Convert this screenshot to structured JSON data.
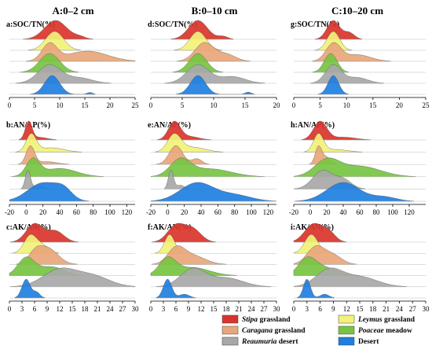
{
  "column_titles": [
    "A:0–2 cm",
    "B:0–10 cm",
    "C:10–20 cm"
  ],
  "chart_data": [
    {
      "id": "a",
      "type": "ridgeline",
      "title": "a:SOC/TN(%)",
      "ticks": [
        0,
        5,
        10,
        15,
        20,
        25
      ],
      "xlim": [
        0,
        25
      ],
      "series": [
        {
          "group": "Stipa grassland",
          "peaks": [
            [
              9.2,
              2.2,
              1.0
            ],
            [
              14.0,
              1.2,
              0.12
            ]
          ]
        },
        {
          "group": "Leymus grassland",
          "peaks": [
            [
              9.0,
              1.8,
              1.0
            ]
          ]
        },
        {
          "group": "Caragana grassland",
          "peaks": [
            [
              8.0,
              1.5,
              0.75
            ],
            [
              15.5,
              4.0,
              0.45
            ]
          ]
        },
        {
          "group": "Poaceae meadow",
          "peaks": [
            [
              8.0,
              2.0,
              1.0
            ]
          ]
        },
        {
          "group": "Reaumuria desert",
          "peaks": [
            [
              8.0,
              2.3,
              0.7
            ],
            [
              14.0,
              2.5,
              0.2
            ]
          ]
        },
        {
          "group": "Desert",
          "peaks": [
            [
              8.5,
              1.5,
              1.0
            ],
            [
              16.0,
              0.6,
              0.1
            ]
          ]
        }
      ]
    },
    {
      "id": "d",
      "type": "ridgeline",
      "title": "d:SOC/TN(%)",
      "ticks": [
        0,
        5,
        10,
        15,
        20
      ],
      "xlim": [
        0,
        20
      ],
      "series": [
        {
          "group": "Stipa grassland",
          "peaks": [
            [
              7.5,
              1.5,
              1.0
            ],
            [
              11.5,
              0.8,
              0.15
            ]
          ]
        },
        {
          "group": "Leymus grassland",
          "peaks": [
            [
              7.5,
              1.3,
              1.0
            ]
          ]
        },
        {
          "group": "Caragana grassland",
          "peaks": [
            [
              8.5,
              1.5,
              0.8
            ],
            [
              12.0,
              1.5,
              0.3
            ]
          ]
        },
        {
          "group": "Poaceae meadow",
          "peaks": [
            [
              7.5,
              1.4,
              1.0
            ]
          ]
        },
        {
          "group": "Reaumuria desert",
          "peaks": [
            [
              7.5,
              1.8,
              0.7
            ],
            [
              13.0,
              2.0,
              0.25
            ]
          ]
        },
        {
          "group": "Desert",
          "peaks": [
            [
              7.5,
              1.2,
              1.0
            ],
            [
              15.5,
              0.5,
              0.12
            ]
          ]
        }
      ]
    },
    {
      "id": "g",
      "type": "ridgeline",
      "title": "g:SOC/TN(%)",
      "ticks": [
        0,
        5,
        10,
        15,
        20,
        25
      ],
      "xlim": [
        0,
        25
      ],
      "series": [
        {
          "group": "Stipa grassland",
          "peaks": [
            [
              7.5,
              1.2,
              1.0
            ],
            [
              10.5,
              1.0,
              0.35
            ]
          ]
        },
        {
          "group": "Leymus grassland",
          "peaks": [
            [
              7.5,
              1.2,
              1.0
            ]
          ]
        },
        {
          "group": "Caragana grassland",
          "peaks": [
            [
              7.5,
              1.4,
              0.8
            ],
            [
              12.0,
              2.5,
              0.3
            ]
          ]
        },
        {
          "group": "Poaceae meadow",
          "peaks": [
            [
              7.0,
              1.2,
              1.0
            ]
          ]
        },
        {
          "group": "Reaumuria desert",
          "peaks": [
            [
              7.5,
              1.5,
              0.8
            ],
            [
              12.0,
              2.0,
              0.25
            ]
          ]
        },
        {
          "group": "Desert",
          "peaks": [
            [
              7.5,
              1.0,
              1.0
            ]
          ]
        }
      ]
    },
    {
      "id": "b",
      "type": "ridgeline",
      "title": "b:AN/AP(%)",
      "ticks": [
        -20,
        0,
        20,
        40,
        60,
        80,
        100,
        120
      ],
      "xlim": [
        -20,
        130
      ],
      "series": [
        {
          "group": "Stipa grassland",
          "peaks": [
            [
              3,
              4,
              1.0
            ],
            [
              15,
              10,
              0.15
            ]
          ]
        },
        {
          "group": "Leymus grassland",
          "peaks": [
            [
              6,
              6,
              0.8
            ],
            [
              30,
              15,
              0.2
            ]
          ]
        },
        {
          "group": "Caragana grassland",
          "peaks": [
            [
              5,
              5,
              1.0
            ],
            [
              25,
              12,
              0.15
            ]
          ]
        },
        {
          "group": "Poaceae meadow",
          "peaks": [
            [
              8,
              8,
              0.5
            ],
            [
              40,
              20,
              0.25
            ]
          ]
        },
        {
          "group": "Reaumuria desert",
          "peaks": [
            [
              2,
              3,
              1.0
            ],
            [
              15,
              6,
              0.2
            ]
          ]
        },
        {
          "group": "Desert",
          "peaks": [
            [
              20,
              18,
              0.6
            ],
            [
              45,
              10,
              0.3
            ]
          ]
        }
      ]
    },
    {
      "id": "e",
      "type": "ridgeline",
      "title": "e:AN/AP(%)",
      "ticks": [
        -20,
        0,
        20,
        40,
        60,
        80,
        100,
        120
      ],
      "xlim": [
        -20,
        130
      ],
      "series": [
        {
          "group": "Stipa grassland",
          "peaks": [
            [
              8,
              7,
              1.0
            ],
            [
              25,
              12,
              0.2
            ]
          ]
        },
        {
          "group": "Leymus grassland",
          "peaks": [
            [
              8,
              8,
              0.7
            ],
            [
              30,
              15,
              0.2
            ]
          ]
        },
        {
          "group": "Caragana grassland",
          "peaks": [
            [
              10,
              8,
              1.0
            ],
            [
              35,
              6,
              0.3
            ]
          ]
        },
        {
          "group": "Poaceae meadow",
          "peaks": [
            [
              15,
              12,
              0.4
            ],
            [
              50,
              25,
              0.2
            ]
          ]
        },
        {
          "group": "Reaumuria desert",
          "peaks": [
            [
              4,
              3,
              1.0
            ],
            [
              15,
              5,
              0.2
            ]
          ]
        },
        {
          "group": "Desert",
          "peaks": [
            [
              35,
              20,
              0.45
            ],
            [
              80,
              20,
              0.15
            ]
          ]
        }
      ]
    },
    {
      "id": "h",
      "type": "ridgeline",
      "title": "h:AN/AP(%)",
      "ticks": [
        -20,
        0,
        20,
        40,
        60,
        80,
        100,
        120
      ],
      "xlim": [
        -20,
        140
      ],
      "series": [
        {
          "group": "Stipa grassland",
          "peaks": [
            [
              12,
              8,
              1.0
            ],
            [
              40,
              15,
              0.15
            ]
          ]
        },
        {
          "group": "Leymus grassland",
          "peaks": [
            [
              10,
              6,
              1.0
            ],
            [
              30,
              15,
              0.15
            ]
          ]
        },
        {
          "group": "Caragana grassland",
          "peaks": [
            [
              10,
              4,
              1.0
            ],
            [
              20,
              5,
              0.4
            ]
          ]
        },
        {
          "group": "Poaceae meadow",
          "peaks": [
            [
              20,
              15,
              0.3
            ],
            [
              60,
              25,
              0.2
            ]
          ]
        },
        {
          "group": "Reaumuria desert",
          "peaks": [
            [
              15,
              12,
              0.3
            ],
            [
              40,
              10,
              0.15
            ]
          ]
        },
        {
          "group": "Desert",
          "peaks": [
            [
              40,
              20,
              0.45
            ],
            [
              90,
              15,
              0.1
            ]
          ]
        }
      ]
    },
    {
      "id": "c",
      "type": "ridgeline",
      "title": "c:AK/AN(%)",
      "ticks": [
        0,
        3,
        6,
        9,
        12,
        15,
        18,
        21,
        24,
        27,
        30
      ],
      "xlim": [
        0,
        30
      ],
      "series": [
        {
          "group": "Stipa grassland",
          "peaks": [
            [
              6,
              2,
              1.0
            ],
            [
              11,
              2,
              0.6
            ]
          ]
        },
        {
          "group": "Leymus grassland",
          "peaks": [
            [
              5,
              1.5,
              1.0
            ],
            [
              8,
              1.5,
              0.4
            ]
          ]
        },
        {
          "group": "Caragana grassland",
          "peaks": [
            [
              9,
              2.5,
              0.8
            ],
            [
              6,
              1.5,
              0.4
            ]
          ]
        },
        {
          "group": "Poaceae meadow",
          "peaks": [
            [
              4,
              2,
              0.6
            ],
            [
              10,
              3,
              0.3
            ]
          ]
        },
        {
          "group": "Reaumuria desert",
          "peaks": [
            [
              12,
              4,
              0.5
            ],
            [
              20,
              4,
              0.3
            ]
          ]
        },
        {
          "group": "Desert",
          "peaks": [
            [
              4,
              1,
              1.0
            ],
            [
              6.5,
              0.8,
              0.3
            ]
          ]
        }
      ]
    },
    {
      "id": "f",
      "type": "ridgeline",
      "title": "f:AK/AN(%)",
      "ticks": [
        0,
        3,
        6,
        9,
        12,
        15,
        18,
        21,
        24,
        27,
        30
      ],
      "xlim": [
        0,
        30
      ],
      "series": [
        {
          "group": "Stipa grassland",
          "peaks": [
            [
              6,
              2,
              0.9
            ],
            [
              10,
              2,
              0.7
            ]
          ]
        },
        {
          "group": "Leymus grassland",
          "peaks": [
            [
              4.5,
              1.2,
              1.0
            ]
          ]
        },
        {
          "group": "Caragana grassland",
          "peaks": [
            [
              6,
              2,
              0.6
            ],
            [
              10,
              3,
              0.35
            ]
          ]
        },
        {
          "group": "Poaceae meadow",
          "peaks": [
            [
              4,
              2,
              0.6
            ],
            [
              10,
              4,
              0.3
            ]
          ]
        },
        {
          "group": "Reaumuria desert",
          "peaks": [
            [
              10,
              3,
              0.5
            ],
            [
              18,
              4,
              0.25
            ]
          ]
        },
        {
          "group": "Desert",
          "peaks": [
            [
              4,
              1,
              1.0
            ],
            [
              8,
              1.2,
              0.2
            ]
          ]
        }
      ]
    },
    {
      "id": "i",
      "type": "ridgeline",
      "title": "i:AK/AN(%)",
      "ticks": [
        0,
        3,
        6,
        9,
        12,
        15,
        18,
        21,
        24,
        27,
        30
      ],
      "xlim": [
        0,
        30
      ],
      "series": [
        {
          "group": "Stipa grassland",
          "peaks": [
            [
              4.5,
              2,
              1.0
            ],
            [
              8,
              1.5,
              0.5
            ]
          ]
        },
        {
          "group": "Leymus grassland",
          "peaks": [
            [
              4,
              1.5,
              1.0
            ]
          ]
        },
        {
          "group": "Caragana grassland",
          "peaks": [
            [
              5,
              2,
              0.8
            ],
            [
              9,
              2,
              0.4
            ]
          ]
        },
        {
          "group": "Poaceae meadow",
          "peaks": [
            [
              3,
              2,
              0.6
            ],
            [
              7,
              3,
              0.3
            ]
          ]
        },
        {
          "group": "Reaumuria desert",
          "peaks": [
            [
              8,
              3,
              0.5
            ],
            [
              15,
              4,
              0.3
            ]
          ]
        },
        {
          "group": "Desert",
          "peaks": [
            [
              3,
              0.8,
              1.0
            ],
            [
              7,
              1,
              0.2
            ]
          ]
        }
      ]
    }
  ],
  "legend": [
    {
      "name_italic": "Stipa",
      "name_rest": " grassland",
      "color": "#d9342b"
    },
    {
      "name_italic": "Leymus",
      "name_rest": " grassland",
      "color": "#f2f27a"
    },
    {
      "name_italic": "Caragana",
      "name_rest": " grassland",
      "color": "#e9a67a"
    },
    {
      "name_italic": "Poaceae",
      "name_rest": " meadow",
      "color": "#76c442"
    },
    {
      "name_italic": "Reaumuria",
      "name_rest": " desert",
      "color": "#a8a8a8"
    },
    {
      "name_italic": "",
      "name_rest": "Desert",
      "color": "#1e7fe0"
    }
  ]
}
